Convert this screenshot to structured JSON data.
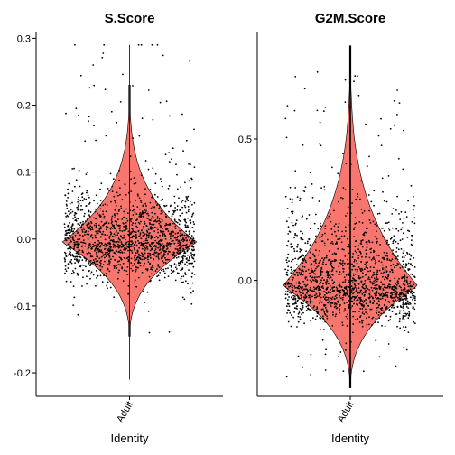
{
  "chart_data": [
    {
      "type": "violin",
      "title": "S.Score",
      "xlabel": "Identity",
      "ylabel": "",
      "categories": [
        "Adult"
      ],
      "ylim": [
        -0.235,
        0.31
      ],
      "yticks": [
        -0.2,
        -0.1,
        0.0,
        0.1,
        0.2,
        0.3
      ],
      "ytick_labels": [
        "-0.2",
        "-0.1",
        "0.0",
        "0.1",
        "0.2",
        "0.3"
      ],
      "fill_color": "#F8766D",
      "point_color": "#000000",
      "grid": false,
      "distribution": {
        "min": -0.21,
        "max": 0.29,
        "median": -0.005,
        "violin_top": 0.23,
        "violin_bottom": -0.145,
        "widest_at": -0.005,
        "n_points_approx": 1600
      }
    },
    {
      "type": "violin",
      "title": "G2M.Score",
      "xlabel": "Identity",
      "ylabel": "",
      "categories": [
        "Adult"
      ],
      "ylim": [
        -0.41,
        0.88
      ],
      "yticks": [
        0.0,
        0.5
      ],
      "ytick_labels": [
        "0.0",
        "0.5"
      ],
      "fill_color": "#F8766D",
      "point_color": "#000000",
      "grid": false,
      "distribution": {
        "min": -0.38,
        "max": 0.83,
        "median": -0.02,
        "violin_top": 0.83,
        "violin_bottom": -0.38,
        "widest_at": -0.02,
        "n_points_approx": 1600
      }
    }
  ]
}
